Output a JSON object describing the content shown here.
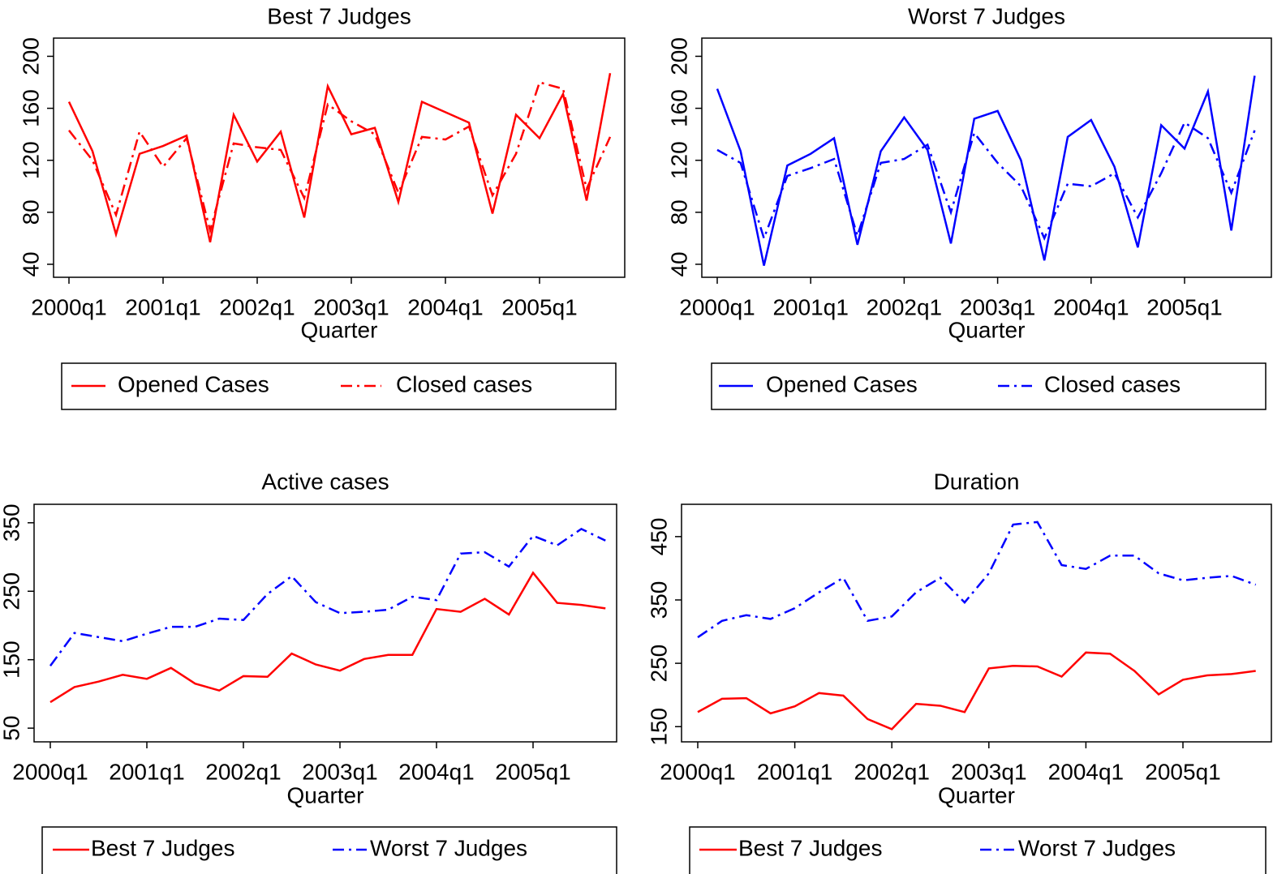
{
  "chart_data": [
    {
      "type": "line",
      "title": "Best 7 Judges",
      "x_label": "Quarter",
      "categories": [
        "2000q1",
        null,
        null,
        null,
        "2001q1",
        null,
        null,
        null,
        "2002q1",
        null,
        null,
        null,
        "2003q1",
        null,
        null,
        null,
        "2004q1",
        null,
        null,
        null,
        "2005q1",
        null,
        null,
        null
      ],
      "series": [
        {
          "name": "Opened Cases",
          "color": "#ff0000",
          "dash": "solid",
          "values": [
            165,
            127,
            63,
            125,
            131,
            139,
            57,
            155,
            119,
            142,
            76,
            177,
            140,
            145,
            88,
            165,
            157,
            149,
            79,
            155,
            137,
            171,
            89,
            187
          ]
        },
        {
          "name": "Closed cases",
          "color": "#ff0000",
          "dash": "dashdot",
          "values": [
            143,
            120,
            78,
            142,
            115,
            137,
            66,
            133,
            130,
            128,
            91,
            163,
            150,
            140,
            95,
            138,
            136,
            146,
            93,
            125,
            180,
            175,
            98,
            138
          ]
        }
      ],
      "ylim": [
        30,
        214
      ],
      "yticks": [
        40,
        80,
        120,
        160,
        200
      ],
      "legend": "bottom"
    },
    {
      "type": "line",
      "title": "Worst 7  Judges",
      "x_label": "Quarter",
      "categories": [
        "2000q1",
        null,
        null,
        null,
        "2001q1",
        null,
        null,
        null,
        "2002q1",
        null,
        null,
        null,
        "2003q1",
        null,
        null,
        null,
        "2004q1",
        null,
        null,
        null,
        "2005q1",
        null,
        null,
        null
      ],
      "series": [
        {
          "name": "Opened Cases",
          "color": "#0000ff",
          "dash": "solid",
          "values": [
            175,
            127,
            39,
            116,
            125,
            137,
            55,
            127,
            153,
            128,
            56,
            152,
            158,
            120,
            43,
            138,
            151,
            115,
            53,
            147,
            129,
            173,
            66,
            185
          ]
        },
        {
          "name": "Closed cases",
          "color": "#0000ff",
          "dash": "dashdot",
          "values": [
            128,
            118,
            60,
            108,
            114,
            121,
            62,
            118,
            121,
            132,
            80,
            141,
            118,
            100,
            60,
            102,
            100,
            110,
            76,
            110,
            149,
            137,
            95,
            143
          ]
        }
      ],
      "ylim": [
        30,
        214
      ],
      "yticks": [
        40,
        80,
        120,
        160,
        200
      ],
      "legend": "bottom"
    },
    {
      "type": "line",
      "title": "Active cases",
      "x_label": "Quarter",
      "categories": [
        "2000q1",
        null,
        null,
        null,
        "2001q1",
        null,
        null,
        null,
        "2002q1",
        null,
        null,
        null,
        "2003q1",
        null,
        null,
        null,
        "2004q1",
        null,
        null,
        null,
        "2005q1",
        null,
        null,
        null
      ],
      "series": [
        {
          "name": "Best 7 Judges",
          "color": "#ff0000",
          "dash": "solid",
          "values": [
            88,
            110,
            118,
            128,
            122,
            138,
            115,
            105,
            126,
            125,
            159,
            143,
            134,
            151,
            157,
            157,
            224,
            220,
            239,
            216,
            277,
            233,
            230,
            225
          ]
        },
        {
          "name": "Worst 7 Judges",
          "color": "#0000ff",
          "dash": "dashdot",
          "values": [
            141,
            189,
            183,
            177,
            188,
            198,
            198,
            210,
            208,
            246,
            272,
            234,
            218,
            220,
            223,
            242,
            237,
            305,
            307,
            286,
            331,
            317,
            341,
            324
          ]
        }
      ],
      "ylim": [
        30,
        377
      ],
      "yticks": [
        50,
        150,
        250,
        350
      ],
      "legend": "bottom"
    },
    {
      "type": "line",
      "title": "Duration",
      "x_label": "Quarter",
      "categories": [
        "2000q1",
        null,
        null,
        null,
        "2001q1",
        null,
        null,
        null,
        "2002q1",
        null,
        null,
        null,
        "2003q1",
        null,
        null,
        null,
        "2004q1",
        null,
        null,
        null,
        "2005q1",
        null,
        null,
        null
      ],
      "series": [
        {
          "name": "Best 7 Judges",
          "color": "#ff0000",
          "dash": "solid",
          "values": [
            173,
            194,
            195,
            171,
            182,
            203,
            199,
            162,
            146,
            186,
            183,
            173,
            242,
            246,
            245,
            229,
            267,
            265,
            238,
            201,
            224,
            231,
            233,
            238
          ]
        },
        {
          "name": "Worst 7 Judges",
          "color": "#0000ff",
          "dash": "dashdot",
          "values": [
            291,
            317,
            326,
            320,
            337,
            362,
            385,
            317,
            324,
            362,
            385,
            346,
            392,
            469,
            473,
            405,
            399,
            420,
            420,
            392,
            381,
            385,
            388,
            374
          ]
        }
      ],
      "ylim": [
        126,
        501
      ],
      "yticks": [
        150,
        250,
        350,
        450
      ],
      "legend": "bottom"
    }
  ]
}
